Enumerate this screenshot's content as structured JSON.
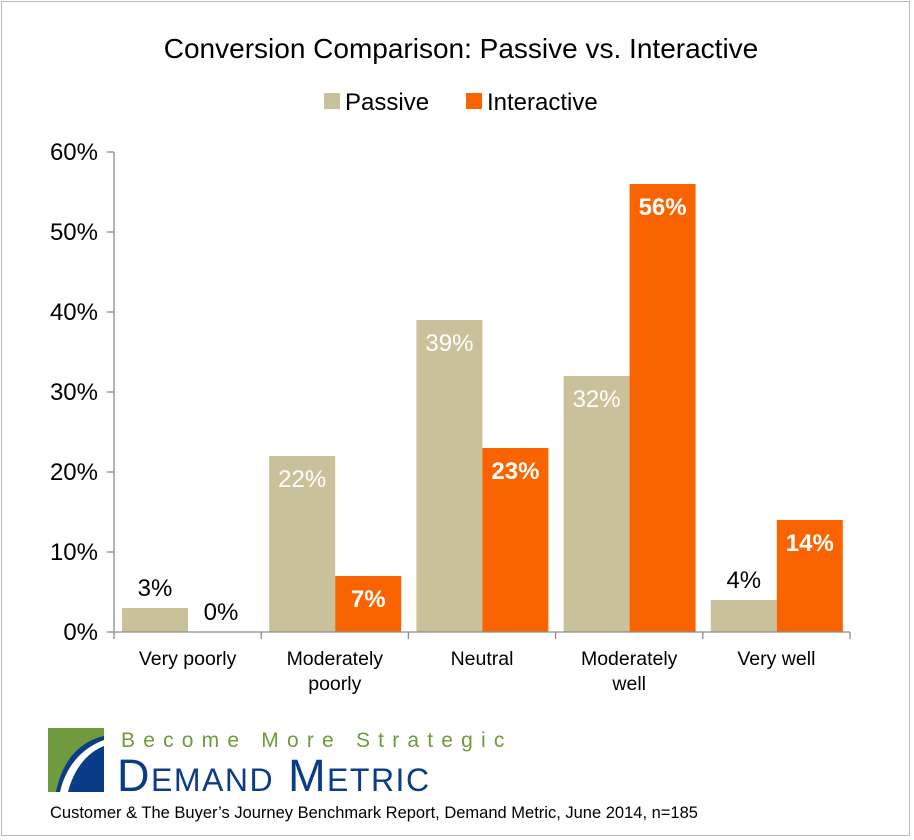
{
  "chart_data": {
    "type": "bar",
    "title": "Conversion Comparison: Passive vs. Interactive",
    "categories": [
      "Very poorly",
      "Moderately poorly",
      "Neutral",
      "Moderately well",
      "Very well"
    ],
    "category_lines": [
      [
        "Very poorly"
      ],
      [
        "Moderately",
        "poorly"
      ],
      [
        "Neutral"
      ],
      [
        "Moderately",
        "well"
      ],
      [
        "Very well"
      ]
    ],
    "series": [
      {
        "name": "Passive",
        "values": [
          3,
          22,
          39,
          32,
          4
        ],
        "labels": [
          "3%",
          "22%",
          "39%",
          "32%",
          "4%"
        ],
        "color": "#c9c19a"
      },
      {
        "name": "Interactive",
        "values": [
          0,
          7,
          23,
          56,
          14
        ],
        "labels": [
          "0%",
          "7%",
          "23%",
          "56%",
          "14%"
        ],
        "color": "#fa6400"
      }
    ],
    "y_ticks": [
      "0%",
      "10%",
      "20%",
      "30%",
      "40%",
      "50%",
      "60%"
    ],
    "ylim": [
      0,
      60
    ],
    "xlabel": "",
    "ylabel": "",
    "legend": "top-center",
    "grid": false
  },
  "branding": {
    "tagline": "Become More Strategic",
    "name": "Demand Metric",
    "logo_colors": [
      "#0b3d86",
      "#6f9a3d"
    ]
  },
  "source": "Customer & The Buyer’s Journey Benchmark Report, Demand Metric, June 2014, n=185"
}
